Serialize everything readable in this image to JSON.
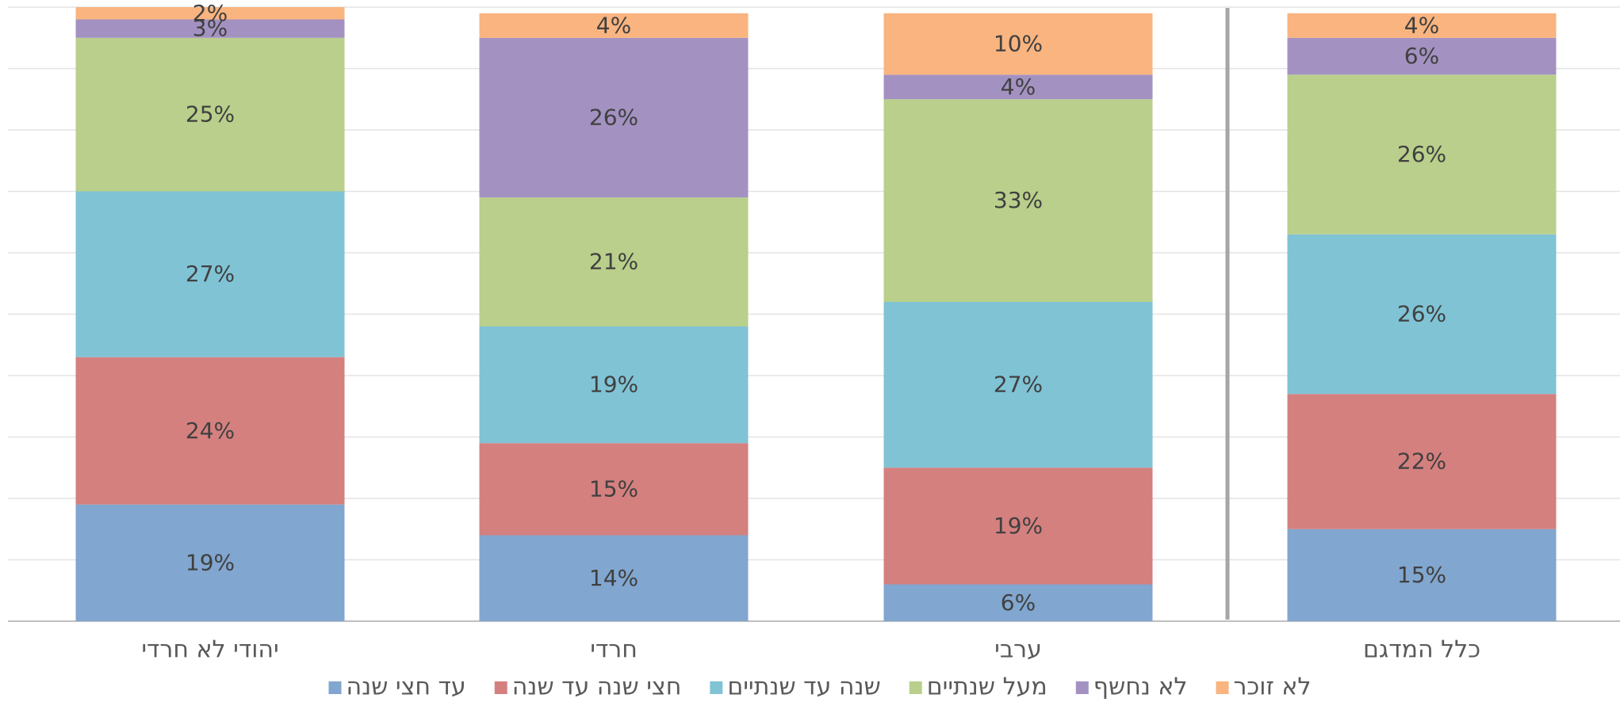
{
  "chart_data": {
    "type": "stacked_bar",
    "categories": [
      "יהודי לא חרדי",
      "חרדי",
      "ערבי",
      "כלל המדגם"
    ],
    "series": [
      {
        "name": "עד חצי שנה",
        "color": "#81a6cf",
        "values": [
          19,
          14,
          6,
          15
        ],
        "value_labels": [
          "19%",
          "14%",
          "6%",
          "15%"
        ]
      },
      {
        "name": "חצי שנה עד שנה",
        "color": "#d4807f",
        "values": [
          24,
          15,
          19,
          22
        ],
        "value_labels": [
          "24%",
          "15%",
          "19%",
          "22%"
        ]
      },
      {
        "name": "שנה עד שנתיים",
        "color": "#80c3d5",
        "values": [
          27,
          19,
          27,
          26
        ],
        "value_labels": [
          "27%",
          "19%",
          "27%",
          "26%"
        ]
      },
      {
        "name": "מעל שנתיים",
        "color": "#b9cf8b",
        "values": [
          25,
          21,
          33,
          26
        ],
        "value_labels": [
          "25%",
          "21%",
          "33%",
          "26%"
        ]
      },
      {
        "name": "לא נחשף",
        "color": "#a392c1",
        "values": [
          3,
          26,
          4,
          6
        ],
        "value_labels": [
          "3%",
          "26%",
          "4%",
          "6%"
        ]
      },
      {
        "name": "לא זוכר",
        "color": "#f9b47f",
        "values": [
          2,
          4,
          10,
          4
        ],
        "value_labels": [
          "2%",
          "4%",
          "10%",
          "4%"
        ]
      }
    ],
    "ylim": [
      0,
      100
    ],
    "yticks": [
      0,
      10,
      20,
      30,
      40,
      50,
      60,
      70,
      80,
      90,
      100
    ],
    "grid": true
  }
}
